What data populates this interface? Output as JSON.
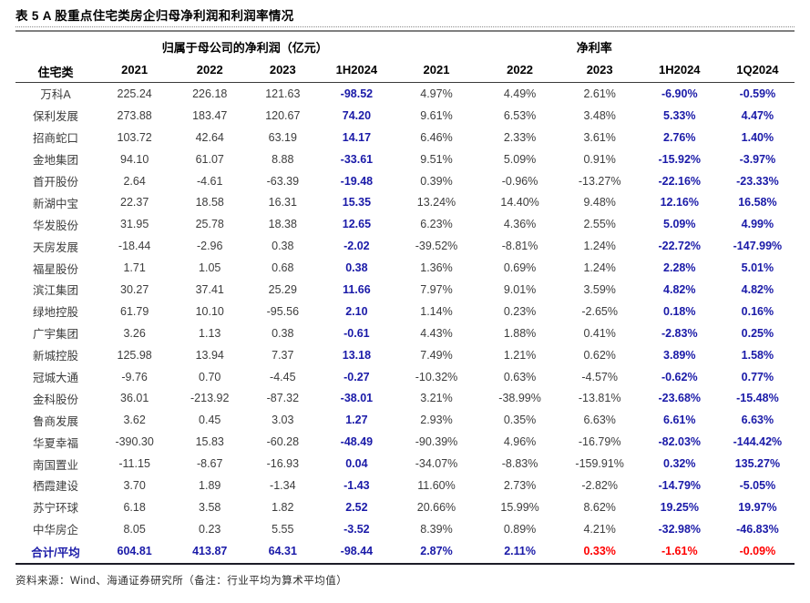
{
  "title": "表 5 A 股重点住宅类房企归母净利润和利润率情况",
  "footer": "资料来源：Wind、海通证券研究所（备注：行业平均为算术平均值）",
  "colors": {
    "accent_blue": "#1a1aa8",
    "negative_red": "#ff0000",
    "body_text": "#3d3d3d"
  },
  "table": {
    "col1_header": "住宅类",
    "group_headers": [
      {
        "label": "归属于母公司的净利润（亿元）",
        "span": 4
      },
      {
        "label": "净利率",
        "span": 5
      }
    ],
    "year_headers": [
      "2021",
      "2022",
      "2023",
      "1H2024",
      "2021",
      "2022",
      "2023",
      "1H2024",
      "1Q2024"
    ],
    "highlight_cols": [
      3,
      7,
      8
    ],
    "rows": [
      {
        "name": "万科A",
        "values": [
          "225.24",
          "226.18",
          "121.63",
          "-98.52",
          "4.97%",
          "4.49%",
          "2.61%",
          "-6.90%",
          "-0.59%"
        ]
      },
      {
        "name": "保利发展",
        "values": [
          "273.88",
          "183.47",
          "120.67",
          "74.20",
          "9.61%",
          "6.53%",
          "3.48%",
          "5.33%",
          "4.47%"
        ]
      },
      {
        "name": "招商蛇口",
        "values": [
          "103.72",
          "42.64",
          "63.19",
          "14.17",
          "6.46%",
          "2.33%",
          "3.61%",
          "2.76%",
          "1.40%"
        ]
      },
      {
        "name": "金地集团",
        "values": [
          "94.10",
          "61.07",
          "8.88",
          "-33.61",
          "9.51%",
          "5.09%",
          "0.91%",
          "-15.92%",
          "-3.97%"
        ]
      },
      {
        "name": "首开股份",
        "values": [
          "2.64",
          "-4.61",
          "-63.39",
          "-19.48",
          "0.39%",
          "-0.96%",
          "-13.27%",
          "-22.16%",
          "-23.33%"
        ]
      },
      {
        "name": "新湖中宝",
        "values": [
          "22.37",
          "18.58",
          "16.31",
          "15.35",
          "13.24%",
          "14.40%",
          "9.48%",
          "12.16%",
          "16.58%"
        ]
      },
      {
        "name": "华发股份",
        "values": [
          "31.95",
          "25.78",
          "18.38",
          "12.65",
          "6.23%",
          "4.36%",
          "2.55%",
          "5.09%",
          "4.99%"
        ]
      },
      {
        "name": "天房发展",
        "values": [
          "-18.44",
          "-2.96",
          "0.38",
          "-2.02",
          "-39.52%",
          "-8.81%",
          "1.24%",
          "-22.72%",
          "-147.99%"
        ]
      },
      {
        "name": "福星股份",
        "values": [
          "1.71",
          "1.05",
          "0.68",
          "0.38",
          "1.36%",
          "0.69%",
          "1.24%",
          "2.28%",
          "5.01%"
        ]
      },
      {
        "name": "滨江集团",
        "values": [
          "30.27",
          "37.41",
          "25.29",
          "11.66",
          "7.97%",
          "9.01%",
          "3.59%",
          "4.82%",
          "4.82%"
        ]
      },
      {
        "name": "绿地控股",
        "values": [
          "61.79",
          "10.10",
          "-95.56",
          "2.10",
          "1.14%",
          "0.23%",
          "-2.65%",
          "0.18%",
          "0.16%"
        ]
      },
      {
        "name": "广宇集团",
        "values": [
          "3.26",
          "1.13",
          "0.38",
          "-0.61",
          "4.43%",
          "1.88%",
          "0.41%",
          "-2.83%",
          "0.25%"
        ]
      },
      {
        "name": "新城控股",
        "values": [
          "125.98",
          "13.94",
          "7.37",
          "13.18",
          "7.49%",
          "1.21%",
          "0.62%",
          "3.89%",
          "1.58%"
        ]
      },
      {
        "name": "冠城大通",
        "values": [
          "-9.76",
          "0.70",
          "-4.45",
          "-0.27",
          "-10.32%",
          "0.63%",
          "-4.57%",
          "-0.62%",
          "0.77%"
        ]
      },
      {
        "name": "金科股份",
        "values": [
          "36.01",
          "-213.92",
          "-87.32",
          "-38.01",
          "3.21%",
          "-38.99%",
          "-13.81%",
          "-23.68%",
          "-15.48%"
        ]
      },
      {
        "name": "鲁商发展",
        "values": [
          "3.62",
          "0.45",
          "3.03",
          "1.27",
          "2.93%",
          "0.35%",
          "6.63%",
          "6.61%",
          "6.63%"
        ]
      },
      {
        "name": "华夏幸福",
        "values": [
          "-390.30",
          "15.83",
          "-60.28",
          "-48.49",
          "-90.39%",
          "4.96%",
          "-16.79%",
          "-82.03%",
          "-144.42%"
        ]
      },
      {
        "name": "南国置业",
        "values": [
          "-11.15",
          "-8.67",
          "-16.93",
          "0.04",
          "-34.07%",
          "-8.83%",
          "-159.91%",
          "0.32%",
          "135.27%"
        ]
      },
      {
        "name": "栖霞建设",
        "values": [
          "3.70",
          "1.89",
          "-1.34",
          "-1.43",
          "11.60%",
          "2.73%",
          "-2.82%",
          "-14.79%",
          "-5.05%"
        ]
      },
      {
        "name": "苏宁环球",
        "values": [
          "6.18",
          "3.58",
          "1.82",
          "2.52",
          "20.66%",
          "15.99%",
          "8.62%",
          "19.25%",
          "19.97%"
        ]
      },
      {
        "name": "中华房企",
        "values": [
          "8.05",
          "0.23",
          "5.55",
          "-3.52",
          "8.39%",
          "0.89%",
          "4.21%",
          "-32.98%",
          "-46.83%"
        ]
      }
    ],
    "total_row": {
      "name": "合计/平均",
      "values": [
        "604.81",
        "413.87",
        "64.31",
        "-98.44",
        "2.87%",
        "2.11%",
        "0.33%",
        "-1.61%",
        "-0.09%"
      ],
      "red_indices": [
        6,
        7,
        8
      ]
    }
  }
}
